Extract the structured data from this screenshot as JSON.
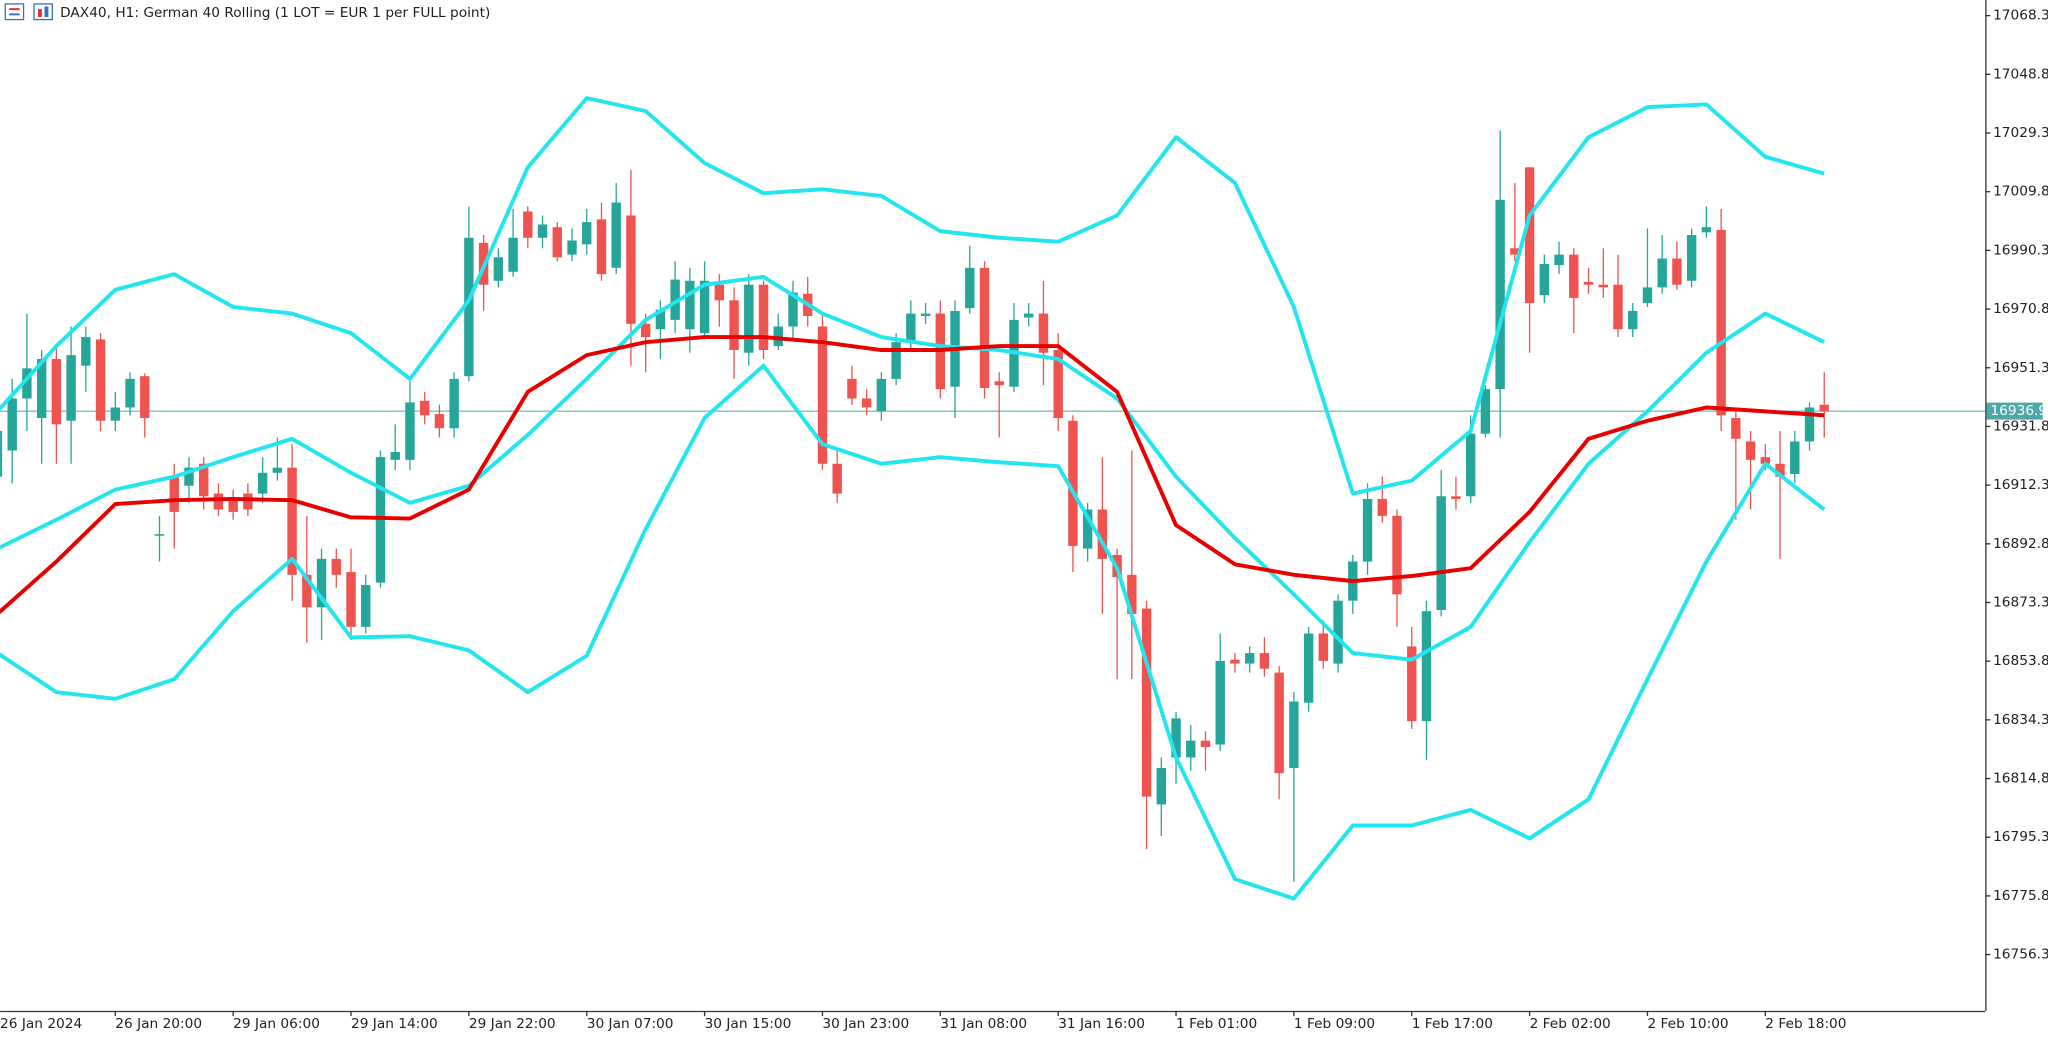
{
  "chart_data": {
    "type": "candlestick",
    "title": "DAX40, H1:  German 40 Rolling (1 LOT = EUR 1 per FULL point)",
    "categories": [
      "26 Jan 2024",
      null,
      null,
      null,
      null,
      null,
      null,
      null,
      "26 Jan 20:00",
      null,
      null,
      null,
      null,
      null,
      null,
      null,
      "29 Jan 06:00",
      null,
      null,
      null,
      null,
      null,
      null,
      null,
      "29 Jan 14:00",
      null,
      null,
      null,
      null,
      null,
      null,
      null,
      "29 Jan 22:00",
      null,
      null,
      null,
      null,
      null,
      null,
      null,
      "30 Jan 07:00",
      null,
      null,
      null,
      null,
      null,
      null,
      null,
      "30 Jan 15:00",
      null,
      null,
      null,
      null,
      null,
      null,
      null,
      "30 Jan 23:00",
      null,
      null,
      null,
      null,
      null,
      null,
      null,
      "31 Jan 08:00",
      null,
      null,
      null,
      null,
      null,
      null,
      null,
      "31 Jan 16:00",
      null,
      null,
      null,
      null,
      null,
      null,
      null,
      "1 Feb 01:00",
      null,
      null,
      null,
      null,
      null,
      null,
      null,
      "1 Feb 09:00",
      null,
      null,
      null,
      null,
      null,
      null,
      null,
      "1 Feb 17:00",
      null,
      null,
      null,
      null,
      null,
      null,
      null,
      "2 Feb 02:00",
      null,
      null,
      null,
      null,
      null,
      null,
      null,
      "2 Feb 10:00",
      null,
      null,
      null,
      null,
      null,
      null,
      null,
      "2 Feb 18:00",
      null,
      null,
      null,
      null
    ],
    "open": [
      16915.1,
      16923.8,
      16941.1,
      16934.6,
      16954.2,
      16933.7,
      16952.0,
      16960.7,
      16933.7,
      16938.1,
      16948.5,
      16895.6,
      16915.1,
      16912.1,
      16919.4,
      16909.5,
      16907.7,
      16909.5,
      16909.5,
      16916.4,
      16918.1,
      16882.5,
      16871.7,
      16887.8,
      16883.4,
      16865.2,
      16879.9,
      16920.7,
      16920.7,
      16940.3,
      16935.9,
      16931.2,
      16948.5,
      16992.8,
      16980.2,
      16983.2,
      17003.2,
      16994.5,
      16998.0,
      16988.9,
      16992.3,
      17000.6,
      16984.5,
      17001.9,
      16965.9,
      16964.1,
      16967.2,
      16964.1,
      16962.8,
      16978.9,
      16973.7,
      16956.3,
      16978.9,
      16958.5,
      16965.0,
      16975.9,
      16965.0,
      16919.4,
      16947.6,
      16941.1,
      16936.8,
      16947.6,
      16959.8,
      16968.5,
      16969.3,
      16945.0,
      16971.1,
      16984.5,
      16946.8,
      16945.0,
      16968.0,
      16969.3,
      16957.2,
      16933.7,
      16891.2,
      16904.2,
      16889.1,
      16882.5,
      16871.3,
      16806.2,
      16821.8,
      16821.8,
      16827.4,
      16826.1,
      16854.3,
      16853.0,
      16856.5,
      16850.0,
      16818.3,
      16840.0,
      16863.0,
      16853.0,
      16873.9,
      16886.9,
      16907.7,
      16902.1,
      16858.7,
      16833.9,
      16870.8,
      16908.6,
      16908.6,
      16929.4,
      16944.2,
      16991.0,
      17017.9,
      16975.4,
      16985.4,
      16988.9,
      16979.8,
      16978.9,
      16978.9,
      16964.1,
      16972.8,
      16978.0,
      16987.6,
      16980.2,
      16996.3,
      16997.1,
      16934.6,
      16926.8,
      16921.6,
      16919.4,
      16916.0,
      16926.8,
      16939.0
    ],
    "high": [
      16934.6,
      16947.6,
      16969.3,
      16957.2,
      16958.5,
      16965.0,
      16965.0,
      16962.8,
      16943.3,
      16949.8,
      16949.4,
      16902.1,
      16919.4,
      16921.6,
      16921.6,
      16912.9,
      16910.8,
      16912.9,
      16921.6,
      16928.1,
      16925.9,
      16902.1,
      16891.2,
      16891.2,
      16891.2,
      16882.5,
      16923.8,
      16932.5,
      16946.8,
      16943.3,
      16939.0,
      16949.8,
      17004.9,
      16995.4,
      16991.0,
      17004.1,
      17004.9,
      17001.9,
      16999.7,
      16997.6,
      17004.1,
      17006.2,
      17012.7,
      17017.1,
      16969.3,
      16973.7,
      16986.7,
      16984.5,
      16986.7,
      16982.4,
      16978.0,
      16982.4,
      16980.2,
      16969.3,
      16980.2,
      16981.5,
      16969.3,
      16923.8,
      16952.0,
      16944.2,
      16949.8,
      16962.8,
      16973.7,
      16972.8,
      16973.7,
      16973.7,
      16991.9,
      16986.7,
      16949.8,
      16972.8,
      16972.8,
      16980.2,
      16962.8,
      16935.5,
      16906.4,
      16921.6,
      16891.2,
      16923.8,
      16873.9,
      16821.8,
      16837.0,
      16832.6,
      16830.5,
      16863.0,
      16856.5,
      16858.7,
      16861.7,
      16852.2,
      16843.5,
      16865.2,
      16867.4,
      16876.0,
      16889.1,
      16912.9,
      16915.1,
      16904.2,
      16865.2,
      16873.9,
      16917.3,
      16915.1,
      16935.5,
      16945.5,
      17030.1,
      17012.7,
      17017.9,
      16988.9,
      16993.2,
      16991.0,
      16984.5,
      16991.0,
      16988.9,
      16972.8,
      16997.6,
      16995.4,
      16993.2,
      16997.6,
      17004.9,
      17004.1,
      16938.1,
      16930.3,
      16925.9,
      16930.3,
      16930.3,
      16939.8,
      16949.8
    ],
    "low": [
      16912.9,
      16912.9,
      16930.3,
      16919.4,
      16919.4,
      16919.4,
      16943.3,
      16930.3,
      16930.3,
      16935.5,
      16928.1,
      16886.9,
      16891.2,
      16906.4,
      16904.2,
      16902.1,
      16900.8,
      16902.1,
      16906.4,
      16913.8,
      16873.9,
      16860.0,
      16860.8,
      16878.2,
      16860.8,
      16863.0,
      16878.2,
      16917.3,
      16917.3,
      16932.5,
      16928.1,
      16928.1,
      16946.8,
      16970.2,
      16978.0,
      16981.5,
      16991.0,
      16991.0,
      16986.7,
      16986.7,
      16988.9,
      16980.2,
      16982.4,
      16952.0,
      16949.8,
      16954.2,
      16962.8,
      16956.3,
      16960.7,
      16965.0,
      16947.6,
      16952.0,
      16954.2,
      16957.2,
      16960.7,
      16965.0,
      16917.3,
      16906.4,
      16939.0,
      16935.5,
      16933.7,
      16945.5,
      16957.2,
      16965.9,
      16941.1,
      16934.6,
      16969.3,
      16941.1,
      16928.1,
      16943.3,
      16965.0,
      16945.5,
      16930.3,
      16883.4,
      16886.9,
      16869.5,
      16847.8,
      16847.8,
      16791.4,
      16795.7,
      16813.1,
      16817.4,
      16817.4,
      16824.0,
      16850.0,
      16850.0,
      16848.7,
      16807.9,
      16780.5,
      16837.0,
      16851.3,
      16850.0,
      16869.5,
      16882.5,
      16899.9,
      16865.2,
      16831.3,
      16820.9,
      16868.7,
      16904.2,
      16906.4,
      16928.1,
      16928.1,
      16986.7,
      16956.3,
      16972.8,
      16982.4,
      16962.8,
      16975.9,
      16974.5,
      16961.5,
      16961.5,
      16971.5,
      16975.9,
      16977.2,
      16978.0,
      16994.5,
      16930.3,
      16900.8,
      16904.2,
      16917.3,
      16887.8,
      16912.9,
      16923.8,
      16928.1
    ],
    "close": [
      16930.3,
      16941.1,
      16951.1,
      16954.2,
      16932.5,
      16955.5,
      16961.5,
      16933.7,
      16938.1,
      16947.6,
      16934.6,
      16896.0,
      16903.4,
      16918.1,
      16908.6,
      16904.2,
      16903.4,
      16904.2,
      16916.4,
      16918.1,
      16882.5,
      16871.7,
      16887.8,
      16882.5,
      16865.2,
      16879.1,
      16921.6,
      16923.3,
      16939.8,
      16935.5,
      16931.2,
      16947.6,
      16994.5,
      16978.9,
      16988.0,
      16994.5,
      16994.5,
      16998.9,
      16988.0,
      16993.6,
      16999.7,
      16982.4,
      17006.2,
      16965.9,
      16961.5,
      16970.6,
      16980.6,
      16980.2,
      16980.2,
      16973.7,
      16957.2,
      16978.9,
      16957.2,
      16965.0,
      16976.3,
      16968.5,
      16919.4,
      16909.5,
      16941.1,
      16938.1,
      16947.6,
      16959.8,
      16969.3,
      16969.3,
      16944.2,
      16970.2,
      16984.5,
      16944.6,
      16945.5,
      16967.2,
      16969.3,
      16956.3,
      16934.6,
      16892.1,
      16904.2,
      16887.8,
      16881.7,
      16869.5,
      16808.8,
      16818.3,
      16834.8,
      16827.4,
      16825.3,
      16853.9,
      16853.0,
      16856.5,
      16851.3,
      16816.6,
      16840.4,
      16863.0,
      16853.9,
      16873.9,
      16886.9,
      16907.7,
      16902.1,
      16876.0,
      16833.9,
      16870.4,
      16908.6,
      16907.7,
      16929.4,
      16944.2,
      17007.1,
      16988.9,
      16972.8,
      16985.8,
      16988.9,
      16974.5,
      16978.9,
      16978.0,
      16964.1,
      16970.2,
      16978.0,
      16987.6,
      16978.9,
      16995.4,
      16998.0,
      16935.5,
      16927.7,
      16920.7,
      16919.4,
      16915.1,
      16926.8,
      16938.1,
      16936.9
    ],
    "up_color": "#26a69a",
    "down_color": "#ef5350",
    "indicators": [
      {
        "color": "#22e5ee",
        "x": [
          0,
          4,
          8,
          12,
          16,
          20,
          24,
          28,
          32,
          36,
          40,
          44,
          48,
          52,
          56,
          60,
          64,
          68,
          72,
          76,
          80,
          84,
          88,
          92,
          96,
          100,
          104,
          108,
          112,
          116,
          120,
          124
        ],
        "values": [
          16936.8,
          16958.5,
          16977.2,
          16982.4,
          16971.5,
          16969.3,
          16962.8,
          16947.6,
          16973.7,
          17017.9,
          17040.9,
          17036.6,
          17019.3,
          17009.3,
          17010.6,
          17008.4,
          16996.7,
          16994.5,
          16993.2,
          17001.9,
          17027.9,
          17012.7,
          16971.5,
          16909.5,
          16913.8,
          16930.3,
          17001.9,
          17027.9,
          17037.9,
          17038.8,
          17021.4,
          17015.8
        ]
      },
      {
        "color": "#22e5ee",
        "x": [
          0,
          4,
          8,
          12,
          16,
          20,
          24,
          28,
          32,
          36,
          40,
          44,
          48,
          52,
          56,
          60,
          64,
          68,
          72,
          76,
          80,
          84,
          88,
          92,
          96,
          100,
          104,
          108,
          112,
          116,
          120,
          124
        ],
        "values": [
          16891.2,
          16900.8,
          16910.8,
          16915.1,
          16921.6,
          16927.7,
          16916.4,
          16906.4,
          16912.1,
          16929.0,
          16947.6,
          16967.2,
          16978.9,
          16981.5,
          16969.3,
          16961.5,
          16958.5,
          16957.2,
          16954.2,
          16941.1,
          16915.1,
          16894.7,
          16876.0,
          16856.5,
          16854.3,
          16865.2,
          16893.4,
          16919.4,
          16936.8,
          16956.3,
          16969.3,
          16959.8
        ]
      },
      {
        "color": "#22e5ee",
        "x": [
          0,
          4,
          8,
          12,
          16,
          20,
          24,
          28,
          32,
          36,
          40,
          44,
          48,
          52,
          56,
          60,
          64,
          68,
          72,
          76,
          80,
          84,
          88,
          92,
          96,
          100,
          104,
          108,
          112,
          116,
          120,
          124
        ],
        "values": [
          16856.5,
          16843.5,
          16841.3,
          16847.8,
          16870.4,
          16887.8,
          16861.7,
          16862.1,
          16857.4,
          16843.5,
          16855.6,
          16897.7,
          16934.6,
          16952.0,
          16925.9,
          16919.4,
          16921.6,
          16919.9,
          16918.6,
          16884.7,
          16821.8,
          16781.4,
          16774.9,
          16799.2,
          16799.2,
          16804.4,
          16794.9,
          16807.9,
          16847.8,
          16886.9,
          16919.4,
          16904.2
        ]
      },
      {
        "color": "#e80000",
        "x": [
          0,
          4,
          8,
          12,
          16,
          20,
          24,
          28,
          32,
          36,
          40,
          44,
          48,
          52,
          56,
          60,
          64,
          68,
          72,
          76,
          80,
          84,
          88,
          92,
          96,
          100,
          104,
          108,
          112,
          116,
          120,
          124
        ],
        "values": [
          16869.5,
          16886.9,
          16906.0,
          16907.3,
          16907.7,
          16907.3,
          16901.6,
          16901.2,
          16910.8,
          16943.3,
          16955.5,
          16959.8,
          16961.5,
          16961.5,
          16959.8,
          16957.2,
          16957.2,
          16958.5,
          16958.5,
          16943.3,
          16899.0,
          16886.0,
          16882.5,
          16880.4,
          16882.1,
          16884.7,
          16903.4,
          16927.7,
          16933.7,
          16938.1,
          16936.8,
          16935.5
        ]
      }
    ],
    "last_price": 16936.9,
    "last_price_color": "#4ea8a8",
    "ylim": [
      16737.6,
      17073.5
    ],
    "yticks": [
      17068.3,
      17048.8,
      17029.3,
      17009.8,
      16990.3,
      16970.8,
      16951.3,
      16931.8,
      16912.3,
      16892.8,
      16873.3,
      16853.8,
      16834.3,
      16814.8,
      16795.3,
      16775.8,
      16756.3
    ],
    "grid": false
  }
}
